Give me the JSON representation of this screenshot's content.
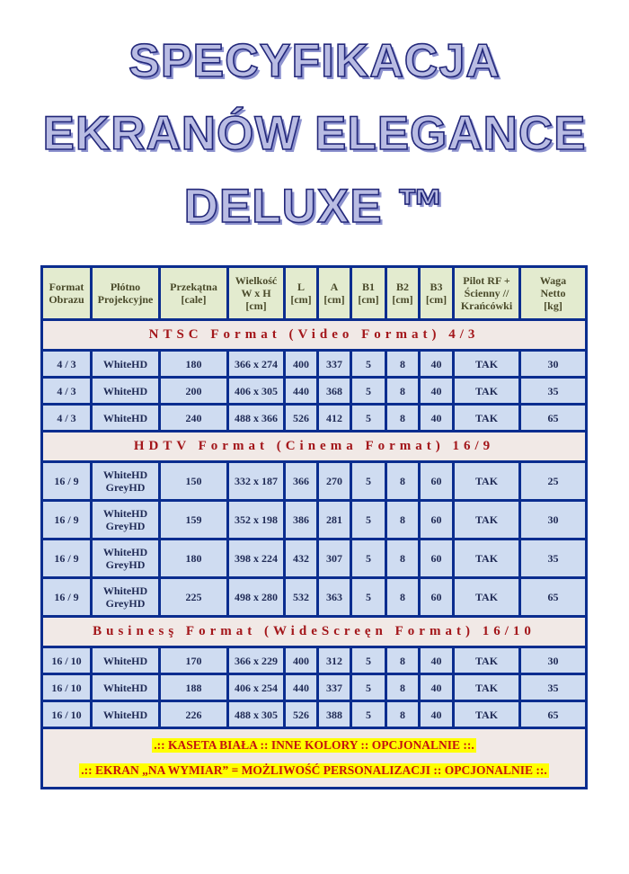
{
  "title": {
    "line1": "SPECYFIKACJA",
    "line2": "EKRANÓW ELEGANCE",
    "line3": "DELUXE ™"
  },
  "table": {
    "headers": [
      "Format\nObrazu",
      "Płótno\nProjekcyjne",
      "Przekątna\n[cale]",
      "Wielkość\nW x H\n[cm]",
      "L\n[cm]",
      "A\n[cm]",
      "B1\n[cm]",
      "B2\n[cm]",
      "B3\n[cm]",
      "Pilot RF +\nŚcienny //\nKrańcówki",
      "Waga\nNetto\n[kg]"
    ],
    "sections": [
      {
        "title": "NTSC Format (Video Format) 4/3",
        "tall": false,
        "rows": [
          [
            "4 / 3",
            "WhiteHD",
            "180",
            "366 x 274",
            "400",
            "337",
            "5",
            "8",
            "40",
            "TAK",
            "30"
          ],
          [
            "4 / 3",
            "WhiteHD",
            "200",
            "406 x 305",
            "440",
            "368",
            "5",
            "8",
            "40",
            "TAK",
            "35"
          ],
          [
            "4 / 3",
            "WhiteHD",
            "240",
            "488 x 366",
            "526",
            "412",
            "5",
            "8",
            "40",
            "TAK",
            "65"
          ]
        ]
      },
      {
        "title": "HDTV Format (Cinema Format) 16/9",
        "tall": true,
        "rows": [
          [
            "16 / 9",
            "WhiteHD\nGreyHD",
            "150",
            "332 x 187",
            "366",
            "270",
            "5",
            "8",
            "60",
            "TAK",
            "25"
          ],
          [
            "16 / 9",
            "WhiteHD\nGreyHD",
            "159",
            "352 x 198",
            "386",
            "281",
            "5",
            "8",
            "60",
            "TAK",
            "30"
          ],
          [
            "16 / 9",
            "WhiteHD\nGreyHD",
            "180",
            "398 x 224",
            "432",
            "307",
            "5",
            "8",
            "60",
            "TAK",
            "35"
          ],
          [
            "16 / 9",
            "WhiteHD\nGreyHD",
            "225",
            "498 x 280",
            "532",
            "363",
            "5",
            "8",
            "60",
            "TAK",
            "65"
          ]
        ]
      },
      {
        "title": "Businesş Format (WideScreęn Format) 16/10",
        "tall": false,
        "rows": [
          [
            "16 / 10",
            "WhiteHD",
            "170",
            "366 x 229",
            "400",
            "312",
            "5",
            "8",
            "40",
            "TAK",
            "30"
          ],
          [
            "16 / 10",
            "WhiteHD",
            "188",
            "406 x 254",
            "440",
            "337",
            "5",
            "8",
            "40",
            "TAK",
            "35"
          ],
          [
            "16 / 10",
            "WhiteHD",
            "226",
            "488 x 305",
            "526",
            "388",
            "5",
            "8",
            "40",
            "TAK",
            "65"
          ]
        ]
      }
    ],
    "notes": [
      ".:: KASETA BIAŁA :: INNE KOLORY :: OPCJONALNIE ::.",
      ".:: EKRAN „NA WYMIAR” = MOŻLIWOŚĆ PERSONALIZACJI :: OPCJONALNIE ::."
    ]
  },
  "colors": {
    "border": "#0b2d8f",
    "header_bg": "#e3ebcf",
    "row_bg": "#cfdcf1",
    "section_bg": "#f1e9e6",
    "section_text": "#a3161a",
    "highlight": "#ffff00"
  }
}
